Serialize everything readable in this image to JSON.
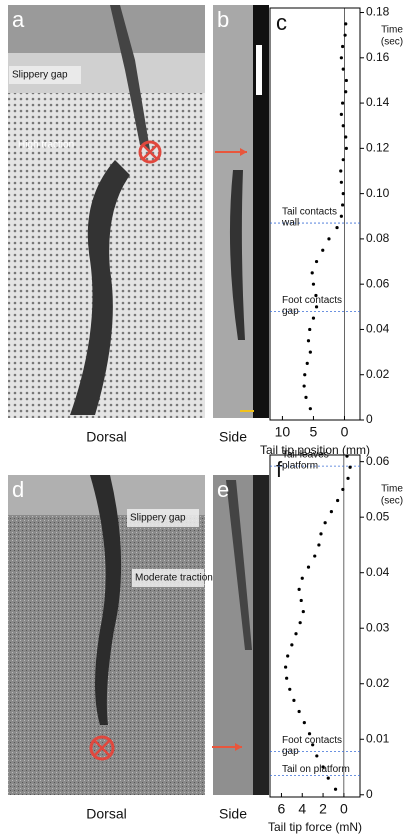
{
  "panels": [
    {
      "label": "a",
      "caption": "Dorsal",
      "notes": [
        "Slippery gap",
        "High traction"
      ]
    },
    {
      "label": "b",
      "caption": "Side"
    },
    {
      "label": "d",
      "caption": "Dorsal",
      "notes": [
        "Slippery gap",
        "Moderate traction"
      ]
    },
    {
      "label": "e",
      "caption": "Side"
    }
  ],
  "chart_data": [
    {
      "type": "scatter",
      "panel_label": "c",
      "xlabel": "Tail tip position (mm)",
      "ylabel": [
        "Time",
        "(sec)"
      ],
      "xlim": [
        12,
        -2.5
      ],
      "ylim": [
        0,
        0.182
      ],
      "xticks": [
        10,
        5,
        0
      ],
      "yticks": [
        0,
        0.02,
        0.04,
        0.06,
        0.08,
        {
          "value": 0.1,
          "label": "0.10"
        },
        0.12,
        0.14,
        0.16,
        0.18
      ],
      "color": "#000000",
      "zero_line": true,
      "x": [
        5.5,
        6.2,
        6.5,
        6.4,
        6.0,
        5.5,
        5.8,
        5.6,
        5.0,
        4.5,
        4.6,
        5.0,
        5.2,
        4.5,
        3.5,
        2.5,
        1.2,
        0.5,
        0.3,
        0.2,
        0.5,
        0.6,
        0.2,
        -0.3,
        -0.2,
        0.2,
        0.5,
        0.3,
        -0.2,
        -0.3,
        0.2,
        0.5,
        0.3,
        -0.1,
        -0.2
      ],
      "y": [
        0.005,
        0.01,
        0.015,
        0.02,
        0.025,
        0.03,
        0.035,
        0.04,
        0.045,
        0.05,
        0.055,
        0.06,
        0.065,
        0.07,
        0.075,
        0.08,
        0.085,
        0.09,
        0.095,
        0.1,
        0.105,
        0.11,
        0.115,
        0.12,
        0.125,
        0.13,
        0.135,
        0.14,
        0.145,
        0.15,
        0.155,
        0.16,
        0.165,
        0.17,
        0.175
      ],
      "annotations": [
        {
          "text": [
            "Tail contacts",
            "wall"
          ],
          "value": 0.087
        },
        {
          "text": [
            "Foot contacts",
            "gap"
          ],
          "value": 0.048
        }
      ]
    },
    {
      "type": "scatter",
      "panel_label": "f",
      "xlabel": "Tail tip force (mN)",
      "ylabel": [
        "Time",
        "(sec)"
      ],
      "xlim": [
        7.1,
        -1.55
      ],
      "ylim": [
        -0.0004,
        0.0612
      ],
      "xticks": [
        6,
        4,
        2,
        0
      ],
      "yticks": [
        0,
        0.01,
        0.02,
        0.03,
        0.04,
        0.05,
        0.06
      ],
      "color": "#000000",
      "zero_line": true,
      "x": [
        0.8,
        1.5,
        2.0,
        2.6,
        3.0,
        3.3,
        3.8,
        4.3,
        4.8,
        5.2,
        5.5,
        5.6,
        5.4,
        5.0,
        4.6,
        4.2,
        3.9,
        4.1,
        4.3,
        4.0,
        3.4,
        2.8,
        2.4,
        2.2,
        1.8,
        1.2,
        0.6,
        0.1,
        -0.4,
        -0.6,
        -0.3
      ],
      "y": [
        0.001,
        0.003,
        0.005,
        0.007,
        0.009,
        0.011,
        0.013,
        0.015,
        0.017,
        0.019,
        0.021,
        0.023,
        0.025,
        0.027,
        0.029,
        0.031,
        0.033,
        0.035,
        0.037,
        0.039,
        0.041,
        0.043,
        0.045,
        0.047,
        0.049,
        0.051,
        0.053,
        0.055,
        0.057,
        0.059,
        0.061
      ],
      "annotations": [
        {
          "text": [
            "Tail leaves",
            "platform"
          ],
          "value": 0.0592
        },
        {
          "text": [
            "Foot contacts",
            "gap"
          ],
          "value": 0.0078
        },
        {
          "text": [
            "Tail on platform"
          ],
          "value": 0.0035
        }
      ]
    }
  ]
}
